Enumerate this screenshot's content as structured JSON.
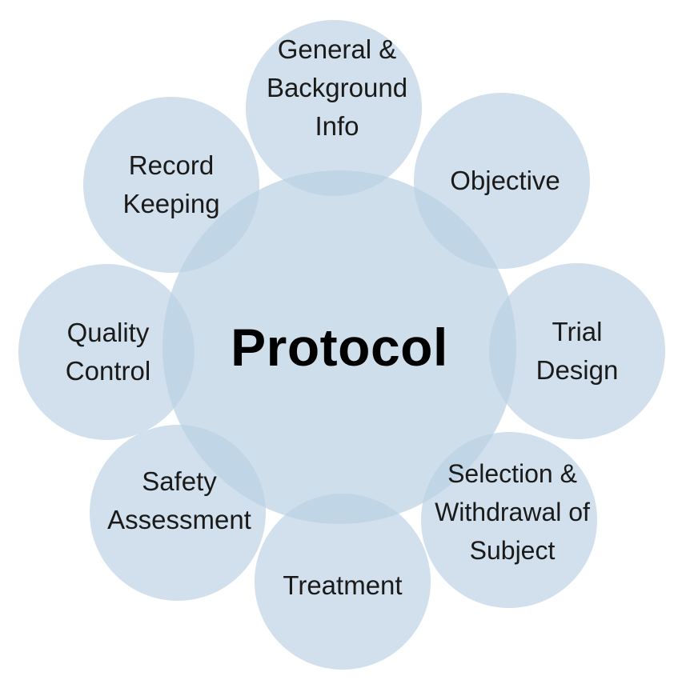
{
  "diagram": {
    "center": {
      "label": "Protocol"
    },
    "satellites": [
      {
        "label": "General &\nBackground\nInfo"
      },
      {
        "label": "Objective"
      },
      {
        "label": "Trial\nDesign"
      },
      {
        "label": "Selection &\nWithdrawal of\nSubject"
      },
      {
        "label": "Treatment"
      },
      {
        "label": "Safety\nAssessment"
      },
      {
        "label": "Quality\nControl"
      },
      {
        "label": "Record\nKeeping"
      }
    ],
    "colors": {
      "circle_fill": "#b9d0e2",
      "text": "#1a1a1a",
      "center_text": "#000000",
      "background": "#ffffff"
    }
  }
}
